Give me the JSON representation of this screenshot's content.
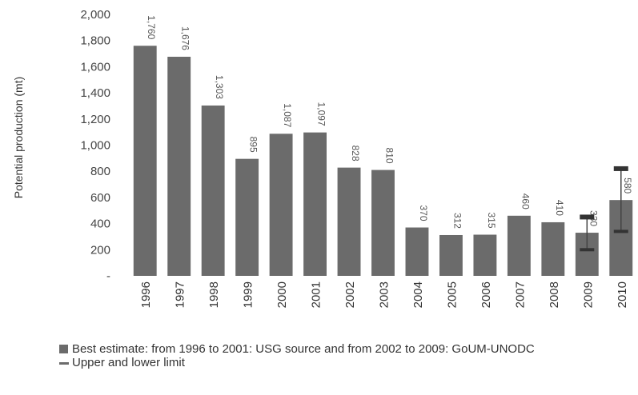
{
  "chart_data": {
    "type": "bar",
    "title": "",
    "xlabel": "",
    "ylabel": "Potential production (mt)",
    "ylim": [
      0,
      2000
    ],
    "yticks": [
      "-",
      "200",
      "400",
      "600",
      "800",
      "1,000",
      "1,200",
      "1,400",
      "1,600",
      "1,800",
      "2,000"
    ],
    "categories": [
      "1996",
      "1997",
      "1998",
      "1999",
      "2000",
      "2001",
      "2002",
      "2003",
      "2004",
      "2005",
      "2006",
      "2007",
      "2008",
      "2009",
      "2010"
    ],
    "values": [
      1760,
      1676,
      1303,
      895,
      1087,
      1097,
      828,
      810,
      370,
      312,
      315,
      460,
      410,
      330,
      580
    ],
    "value_labels": [
      "1,760",
      "1,676",
      "1,303",
      "895",
      "1,087",
      "1,097",
      "828",
      "810",
      "370",
      "312",
      "315",
      "460",
      "410",
      "330",
      "580"
    ],
    "error_bars": [
      {
        "category": "2009",
        "lower": 200,
        "upper": 450
      },
      {
        "category": "2010",
        "lower": 340,
        "upper": 820
      }
    ],
    "bar_color": "#6b6b6b",
    "grid": false,
    "legend_position": "bottom"
  },
  "legend": {
    "items": [
      {
        "label": "Best estimate: from 1996 to 2001: USG source and from 2002 to 2009: GoUM-UNODC",
        "marker": "box"
      },
      {
        "label": "Upper and lower limit",
        "marker": "line"
      }
    ]
  }
}
